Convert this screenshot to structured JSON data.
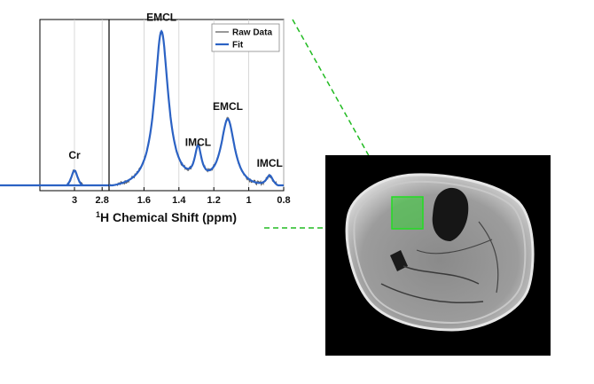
{
  "chart_data": {
    "type": "line",
    "xlabel_pre": "1",
    "xlabel_main": "H Chemical Shift (ppm)",
    "xlim": [
      3.25,
      0.8
    ],
    "x_reversed": true,
    "ylim": [
      0,
      1
    ],
    "grid": true,
    "legend_position": "top-right",
    "x_ticks": [
      "3",
      "2.8",
      "1.6",
      "1.4",
      "1.2",
      "1",
      "0.8"
    ],
    "x_tick_values": [
      3.0,
      2.8,
      1.6,
      1.4,
      1.2,
      1.0,
      0.8
    ],
    "axis_break": true,
    "series": [
      {
        "name": "Raw Data",
        "color": "#555555"
      },
      {
        "name": "Fit",
        "color": "#2b62c4"
      }
    ],
    "peaks": [
      {
        "label": "Cr",
        "x": 3.0,
        "height": 0.12,
        "width": 0.04
      },
      {
        "label": "EMCL",
        "x": 1.5,
        "height": 0.97,
        "width": 0.06
      },
      {
        "label": "IMCL",
        "x": 1.29,
        "height": 0.2,
        "width": 0.03
      },
      {
        "label": "EMCL",
        "x": 1.12,
        "height": 0.42,
        "width": 0.06
      },
      {
        "label": "IMCL",
        "x": 0.88,
        "height": 0.07,
        "width": 0.03
      }
    ]
  },
  "mri": {
    "background_color": "#000000",
    "roi_color": "#22dd22",
    "connector_color": "#22bb22"
  }
}
